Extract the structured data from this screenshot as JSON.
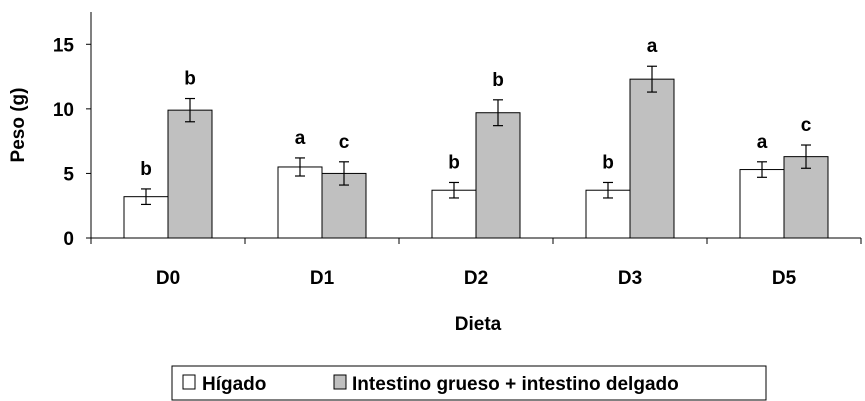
{
  "chart_data": {
    "type": "bar",
    "xlabel": "Dieta",
    "ylabel": "Peso (g)",
    "ylim": [
      0,
      17.5
    ],
    "yticks": [
      0,
      5,
      10,
      15
    ],
    "grid": false,
    "legend_position": "bottom",
    "categories": [
      "D0",
      "D1",
      "D2",
      "D3",
      "D5"
    ],
    "series": [
      {
        "name": "Hígado",
        "color": "#ffffff",
        "values": [
          3.2,
          5.5,
          3.7,
          3.7,
          5.3
        ],
        "errors": [
          0.6,
          0.7,
          0.6,
          0.6,
          0.6
        ],
        "labels": [
          "b",
          "a",
          "b",
          "b",
          "a"
        ]
      },
      {
        "name": "Intestino grueso + intestino delgado",
        "color": "#c0c0c0",
        "values": [
          9.9,
          5.0,
          9.7,
          12.3,
          6.3
        ],
        "errors": [
          0.9,
          0.9,
          1.0,
          1.0,
          0.9
        ],
        "labels": [
          "b",
          "c",
          "b",
          "a",
          "c"
        ]
      }
    ]
  }
}
